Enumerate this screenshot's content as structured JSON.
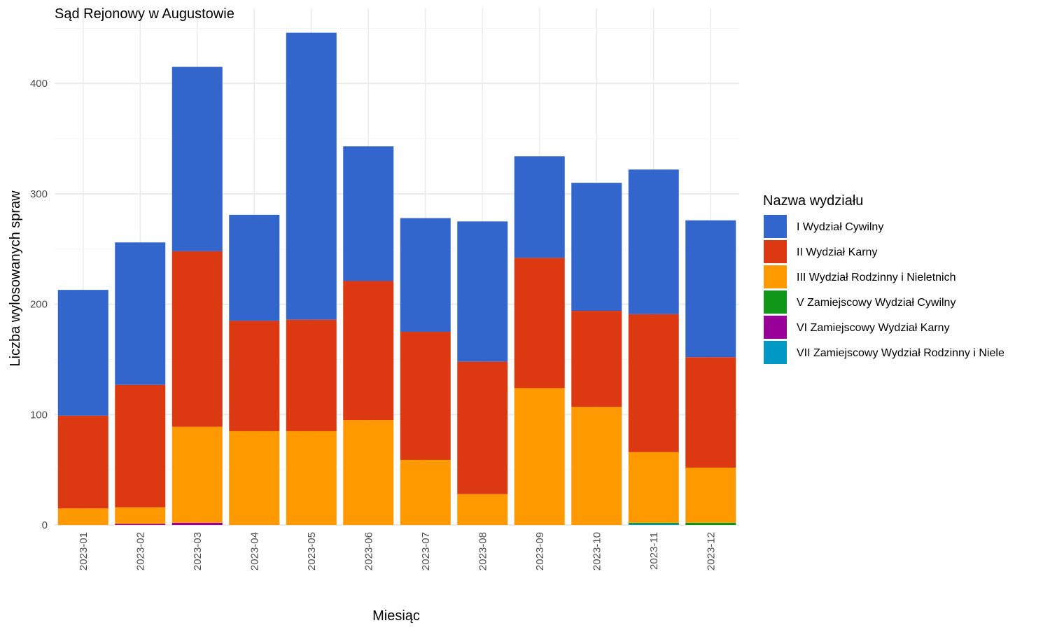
{
  "chart_data": {
    "type": "bar",
    "stacked": true,
    "title": "Sąd Rejonowy w Augustowie",
    "xlabel": "Miesiąc",
    "ylabel": "Liczba wylosowanych spraw",
    "ylim": [
      0,
      450
    ],
    "yticks": [
      0,
      100,
      200,
      300,
      400
    ],
    "grid": true,
    "legend_title": "Nazwa wydziału",
    "legend_position": "right",
    "categories": [
      "2023-01",
      "2023-02",
      "2023-03",
      "2023-04",
      "2023-05",
      "2023-06",
      "2023-07",
      "2023-08",
      "2023-09",
      "2023-10",
      "2023-11",
      "2023-12"
    ],
    "series": [
      {
        "name": "VII Zamiejscowy Wydział Rodzinny i Niele",
        "color": "#0099C6",
        "values": [
          0,
          0,
          0,
          0,
          0,
          0,
          0,
          0,
          0,
          0,
          1,
          0
        ]
      },
      {
        "name": "VI Zamiejscowy Wydział Karny",
        "color": "#990099",
        "values": [
          0,
          1,
          2,
          0,
          0,
          0,
          0,
          0,
          0,
          0,
          0,
          0
        ]
      },
      {
        "name": "V Zamiejscowy Wydział Cywilny",
        "color": "#109618",
        "values": [
          0,
          0,
          0,
          0,
          0,
          0,
          0,
          0,
          0,
          0,
          1,
          2
        ]
      },
      {
        "name": "III Wydział Rodzinny i Nieletnich",
        "color": "#FF9900",
        "values": [
          15,
          15,
          87,
          85,
          85,
          95,
          59,
          28,
          124,
          107,
          64,
          50
        ]
      },
      {
        "name": "II Wydział Karny",
        "color": "#DC3912",
        "values": [
          84,
          111,
          159,
          100,
          101,
          126,
          116,
          120,
          118,
          87,
          125,
          100
        ]
      },
      {
        "name": "I Wydział Cywilny",
        "color": "#3366CC",
        "values": [
          114,
          129,
          167,
          96,
          260,
          122,
          103,
          127,
          92,
          116,
          131,
          124
        ]
      }
    ],
    "legend_order": [
      "I Wydział Cywilny",
      "II Wydział Karny",
      "III Wydział Rodzinny i Nieletnich",
      "V Zamiejscowy Wydział Cywilny",
      "VI Zamiejscowy Wydział Karny",
      "VII Zamiejscowy Wydział Rodzinny i Niele"
    ]
  }
}
